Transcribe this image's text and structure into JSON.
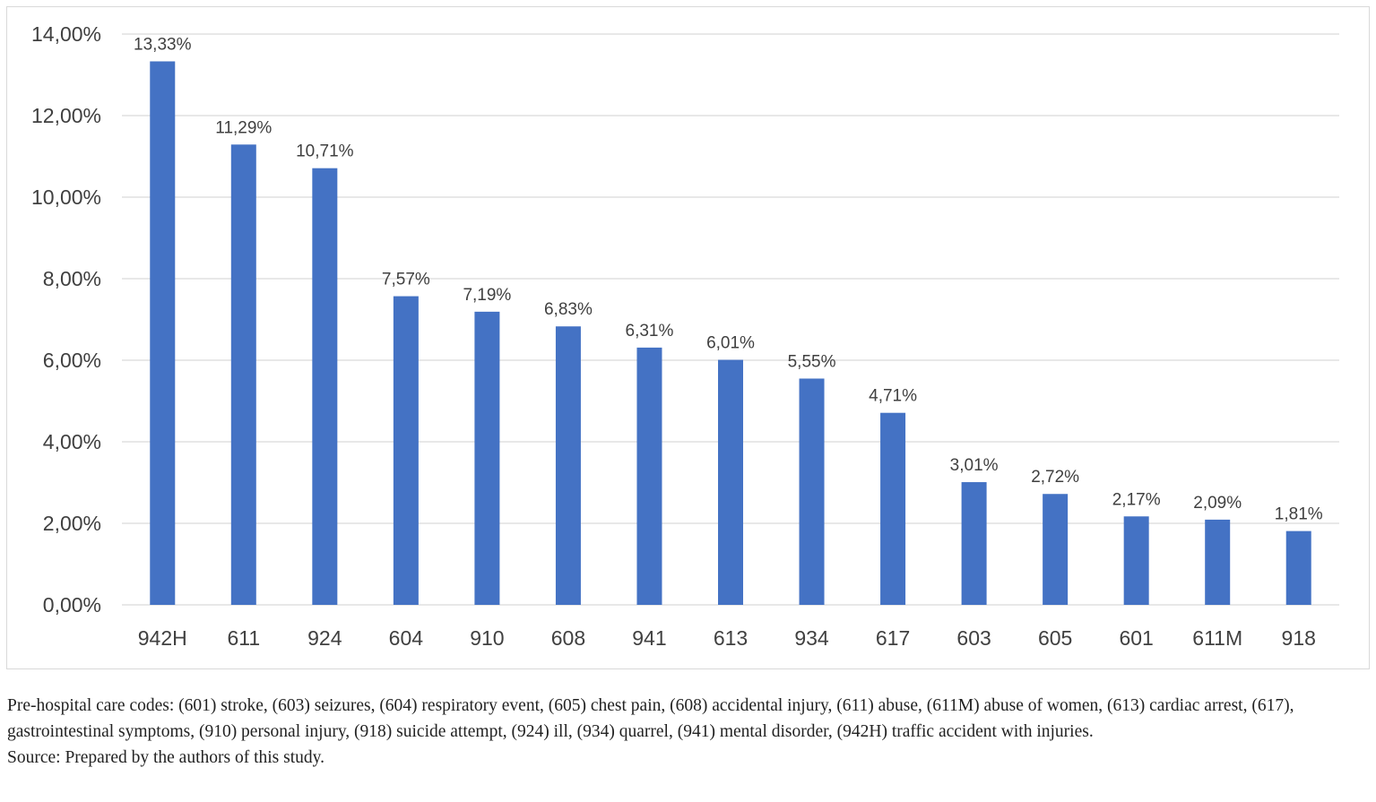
{
  "chart_data": {
    "type": "bar",
    "categories": [
      "942H",
      "611",
      "924",
      "604",
      "910",
      "608",
      "941",
      "613",
      "934",
      "617",
      "603",
      "605",
      "601",
      "611M",
      "918"
    ],
    "values": [
      13.33,
      11.29,
      10.71,
      7.57,
      7.19,
      6.83,
      6.31,
      6.01,
      5.55,
      4.71,
      3.01,
      2.72,
      2.17,
      2.09,
      1.81
    ],
    "value_labels": [
      "13,33%",
      "11,29%",
      "10,71%",
      "7,57%",
      "7,19%",
      "6,83%",
      "6,31%",
      "6,01%",
      "5,55%",
      "4,71%",
      "3,01%",
      "2,72%",
      "2,17%",
      "2,09%",
      "1,81%"
    ],
    "y_ticks": [
      0,
      2,
      4,
      6,
      8,
      10,
      12,
      14
    ],
    "y_tick_labels": [
      "0,00%",
      "2,00%",
      "4,00%",
      "6,00%",
      "8,00%",
      "10,00%",
      "12,00%",
      "14,00%"
    ],
    "ylim": [
      0,
      14
    ],
    "grid": true,
    "legend": "none",
    "title": "",
    "xlabel": "",
    "ylabel": ""
  },
  "colors": {
    "bar": "#4472c4",
    "grid": "#d9d9d9",
    "axis_text": "#404040",
    "label_text": "#404040"
  },
  "notes": {
    "codes_caption": "Pre-hospital care codes: (601) stroke, (603) seizures, (604) respiratory event, (605) chest pain, (608) accidental injury, (611) abuse, (611M) abuse of women, (613) cardiac arrest, (617), gastrointestinal symptoms, (910) personal injury, (918) suicide attempt, (924) ill, (934) quarrel, (941) mental disorder, (942H) traffic accident with injuries.",
    "source": "Source: Prepared by the authors of this study."
  }
}
